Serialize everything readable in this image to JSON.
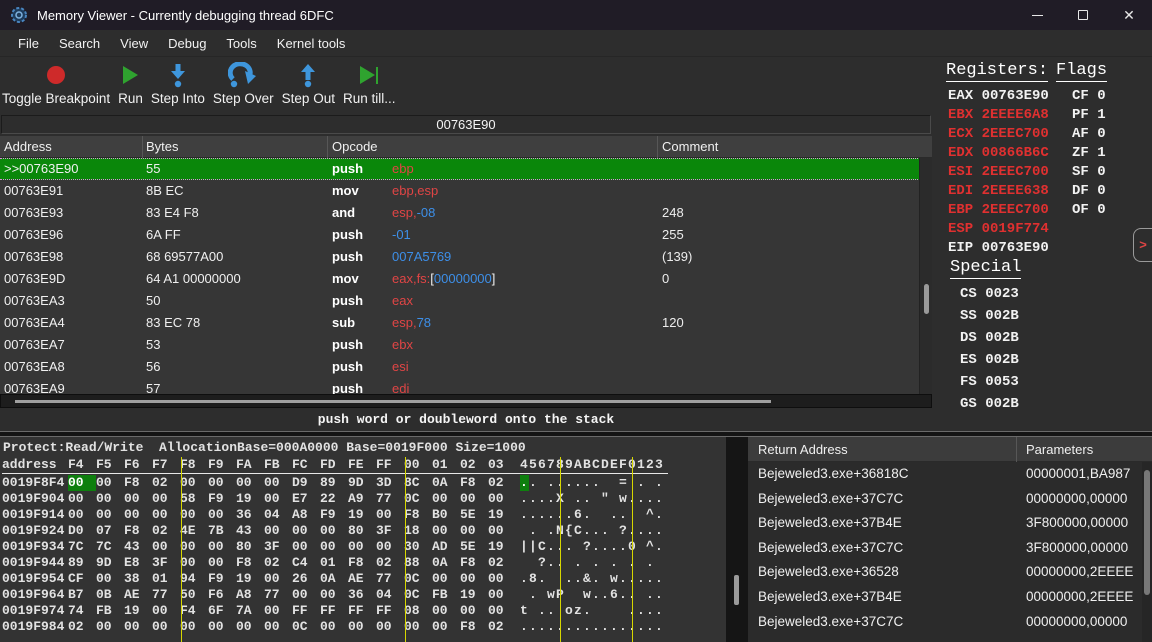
{
  "window": {
    "title": "Memory Viewer - Currently debugging thread 6DFC",
    "controls": {
      "minimize": "minimize",
      "maximize": "maximize",
      "close": "close"
    }
  },
  "menu": {
    "items": [
      "File",
      "Search",
      "View",
      "Debug",
      "Tools",
      "Kernel tools"
    ]
  },
  "toolbar": {
    "items": [
      {
        "label": "Toggle Breakpoint",
        "icon": "breakpoint-icon"
      },
      {
        "label": "Run",
        "icon": "run-icon"
      },
      {
        "label": "Step Into",
        "icon": "step-into-icon"
      },
      {
        "label": "Step Over",
        "icon": "step-over-icon"
      },
      {
        "label": "Step Out",
        "icon": "step-out-icon"
      },
      {
        "label": "Run till...",
        "icon": "run-till-icon"
      }
    ]
  },
  "address_bar": {
    "value": "00763E90"
  },
  "disassembly": {
    "columns": [
      "Address",
      "Bytes",
      "Opcode",
      "Comment"
    ],
    "rows": [
      {
        "address": ">>00763E90",
        "bytes": "55",
        "mnemonic": "push",
        "operands": [
          [
            "r",
            "ebp"
          ]
        ],
        "comment": "",
        "selected": true
      },
      {
        "address": "00763E91",
        "bytes": "8B EC",
        "mnemonic": "mov",
        "operands": [
          [
            "r",
            "ebp,esp"
          ]
        ],
        "comment": "",
        "selected": false
      },
      {
        "address": "00763E93",
        "bytes": "83 E4 F8",
        "mnemonic": "and",
        "operands": [
          [
            "r",
            "esp,"
          ],
          [
            "n",
            "-08"
          ]
        ],
        "comment": "248",
        "selected": false
      },
      {
        "address": "00763E96",
        "bytes": "6A FF",
        "mnemonic": "push",
        "operands": [
          [
            "n",
            "-01"
          ]
        ],
        "comment": "255",
        "selected": false
      },
      {
        "address": "00763E98",
        "bytes": "68 69577A00",
        "mnemonic": "push",
        "operands": [
          [
            "n",
            "007A5769"
          ]
        ],
        "comment": "(139)",
        "selected": false
      },
      {
        "address": "00763E9D",
        "bytes": "64 A1 00000000",
        "mnemonic": "mov",
        "operands": [
          [
            "r",
            "eax,fs:"
          ],
          [
            "w",
            "["
          ],
          [
            "n",
            "00000000"
          ],
          [
            "w",
            "]"
          ]
        ],
        "comment": "0",
        "selected": false
      },
      {
        "address": "00763EA3",
        "bytes": "50",
        "mnemonic": "push",
        "operands": [
          [
            "r",
            "eax"
          ]
        ],
        "comment": "",
        "selected": false
      },
      {
        "address": "00763EA4",
        "bytes": "83 EC 78",
        "mnemonic": "sub",
        "operands": [
          [
            "r",
            "esp,"
          ],
          [
            "n",
            "78"
          ]
        ],
        "comment": "120",
        "selected": false
      },
      {
        "address": "00763EA7",
        "bytes": "53",
        "mnemonic": "push",
        "operands": [
          [
            "r",
            "ebx"
          ]
        ],
        "comment": "",
        "selected": false
      },
      {
        "address": "00763EA8",
        "bytes": "56",
        "mnemonic": "push",
        "operands": [
          [
            "r",
            "esi"
          ]
        ],
        "comment": "",
        "selected": false
      },
      {
        "address": "00763EA9",
        "bytes": "57",
        "mnemonic": "push",
        "operands": [
          [
            "r",
            "edi"
          ]
        ],
        "comment": "",
        "selected": false
      }
    ]
  },
  "status_bar": {
    "text": "push word or doubleword onto the stack"
  },
  "registers_panel": {
    "registers_title": "Registers:",
    "flags_title": "Flags",
    "registers": [
      {
        "name": "EAX",
        "value": "00763E90",
        "changed": false
      },
      {
        "name": "EBX",
        "value": "2EEEE6A8",
        "changed": true
      },
      {
        "name": "ECX",
        "value": "2EEEC700",
        "changed": true
      },
      {
        "name": "EDX",
        "value": "00866B6C",
        "changed": true
      },
      {
        "name": "ESI",
        "value": "2EEEC700",
        "changed": true
      },
      {
        "name": "EDI",
        "value": "2EEEE638",
        "changed": true
      },
      {
        "name": "EBP",
        "value": "2EEEC700",
        "changed": true
      },
      {
        "name": "ESP",
        "value": "0019F774",
        "changed": true
      },
      {
        "name": "EIP",
        "value": "00763E90",
        "changed": false
      }
    ],
    "flags": [
      {
        "name": "CF",
        "value": "0"
      },
      {
        "name": "PF",
        "value": "1"
      },
      {
        "name": "AF",
        "value": "0"
      },
      {
        "name": "ZF",
        "value": "1"
      },
      {
        "name": "SF",
        "value": "0"
      },
      {
        "name": "DF",
        "value": "0"
      },
      {
        "name": "OF",
        "value": "0"
      }
    ],
    "special_title": "Special",
    "special": [
      {
        "name": "CS",
        "value": "0023"
      },
      {
        "name": "SS",
        "value": "002B"
      },
      {
        "name": "DS",
        "value": "002B"
      },
      {
        "name": "ES",
        "value": "002B"
      },
      {
        "name": "FS",
        "value": "0053"
      },
      {
        "name": "GS",
        "value": "002B"
      }
    ],
    "expand_button": ">"
  },
  "memory_view": {
    "info": "Protect:Read/Write  AllocationBase=000A0000 Base=0019F000 Size=1000",
    "address_header": "address",
    "byte_headers": [
      "F4",
      "F5",
      "F6",
      "F7",
      "F8",
      "F9",
      "FA",
      "FB",
      "FC",
      "FD",
      "FE",
      "FF",
      "00",
      "01",
      "02",
      "03"
    ],
    "ascii_header": "456789ABCDEF0123",
    "highlight": {
      "row": 0,
      "byte": 0
    },
    "rows": [
      {
        "address": "0019F8F4",
        "bytes": [
          "00",
          "00",
          "F8",
          "02",
          "00",
          "00",
          "00",
          "00",
          "D9",
          "89",
          "9D",
          "3D",
          "8C",
          "0A",
          "F8",
          "02"
        ],
        "ascii": ".. ......  = . ."
      },
      {
        "address": "0019F904",
        "bytes": [
          "00",
          "00",
          "00",
          "00",
          "58",
          "F9",
          "19",
          "00",
          "E7",
          "22",
          "A9",
          "77",
          "0C",
          "00",
          "00",
          "00"
        ],
        "ascii": "....X .. \" w...."
      },
      {
        "address": "0019F914",
        "bytes": [
          "00",
          "00",
          "00",
          "00",
          "00",
          "00",
          "36",
          "04",
          "A8",
          "F9",
          "19",
          "00",
          "F8",
          "B0",
          "5E",
          "19"
        ],
        "ascii": "......6.  ..  ^."
      },
      {
        "address": "0019F924",
        "bytes": [
          "D0",
          "07",
          "F8",
          "02",
          "4E",
          "7B",
          "43",
          "00",
          "00",
          "00",
          "80",
          "3F",
          "18",
          "00",
          "00",
          "00"
        ],
        "ascii": " . .N{C... ?...."
      },
      {
        "address": "0019F934",
        "bytes": [
          "7C",
          "7C",
          "43",
          "00",
          "00",
          "00",
          "80",
          "3F",
          "00",
          "00",
          "00",
          "00",
          "30",
          "AD",
          "5E",
          "19"
        ],
        "ascii": "||C... ?....0 ^."
      },
      {
        "address": "0019F944",
        "bytes": [
          "89",
          "9D",
          "E8",
          "3F",
          "00",
          "00",
          "F8",
          "02",
          "C4",
          "01",
          "F8",
          "02",
          "88",
          "0A",
          "F8",
          "02"
        ],
        "ascii": "  ?.. . . . . . "
      },
      {
        "address": "0019F954",
        "bytes": [
          "CF",
          "00",
          "38",
          "01",
          "94",
          "F9",
          "19",
          "00",
          "26",
          "0A",
          "AE",
          "77",
          "0C",
          "00",
          "00",
          "00"
        ],
        "ascii": ".8.  ..&. w....."
      },
      {
        "address": "0019F964",
        "bytes": [
          "B7",
          "0B",
          "AE",
          "77",
          "50",
          "F6",
          "A8",
          "77",
          "00",
          "00",
          "36",
          "04",
          "0C",
          "FB",
          "19",
          "00"
        ],
        "ascii": " . wP  w..6.. .."
      },
      {
        "address": "0019F974",
        "bytes": [
          "74",
          "FB",
          "19",
          "00",
          "F4",
          "6F",
          "7A",
          "00",
          "FF",
          "FF",
          "FF",
          "FF",
          "08",
          "00",
          "00",
          "00"
        ],
        "ascii": "t .. oz.    ...."
      },
      {
        "address": "0019F984",
        "bytes": [
          "02",
          "00",
          "00",
          "00",
          "00",
          "00",
          "00",
          "00",
          "0C",
          "00",
          "00",
          "00",
          "00",
          "00",
          "F8",
          "02"
        ],
        "ascii": "................"
      }
    ]
  },
  "stack_view": {
    "columns": [
      "Return Address",
      "Parameters"
    ],
    "rows": [
      {
        "return_address": "Bejeweled3.exe+36818C",
        "parameters": "00000001,BA987"
      },
      {
        "return_address": "Bejeweled3.exe+37C7C",
        "parameters": "00000000,00000"
      },
      {
        "return_address": "Bejeweled3.exe+37B4E",
        "parameters": "3F800000,00000"
      },
      {
        "return_address": "Bejeweled3.exe+37C7C",
        "parameters": "3F800000,00000"
      },
      {
        "return_address": "Bejeweled3.exe+36528",
        "parameters": "00000000,2EEEE"
      },
      {
        "return_address": "Bejeweled3.exe+37B4E",
        "parameters": "00000000,2EEEE"
      },
      {
        "return_address": "Bejeweled3.exe+37C7C",
        "parameters": "00000000,00000"
      }
    ]
  },
  "colors": {
    "selection_green": "#0A870A",
    "register_red": "#E03030",
    "operand_red": "#E04545",
    "number_blue": "#3D8FE8",
    "hex_separator_yellow": "#D6D600",
    "byte_highlight_green": "#0E7F0E",
    "titlebar_bg": "#201C26",
    "panel_bg": "#2D2D2D"
  }
}
